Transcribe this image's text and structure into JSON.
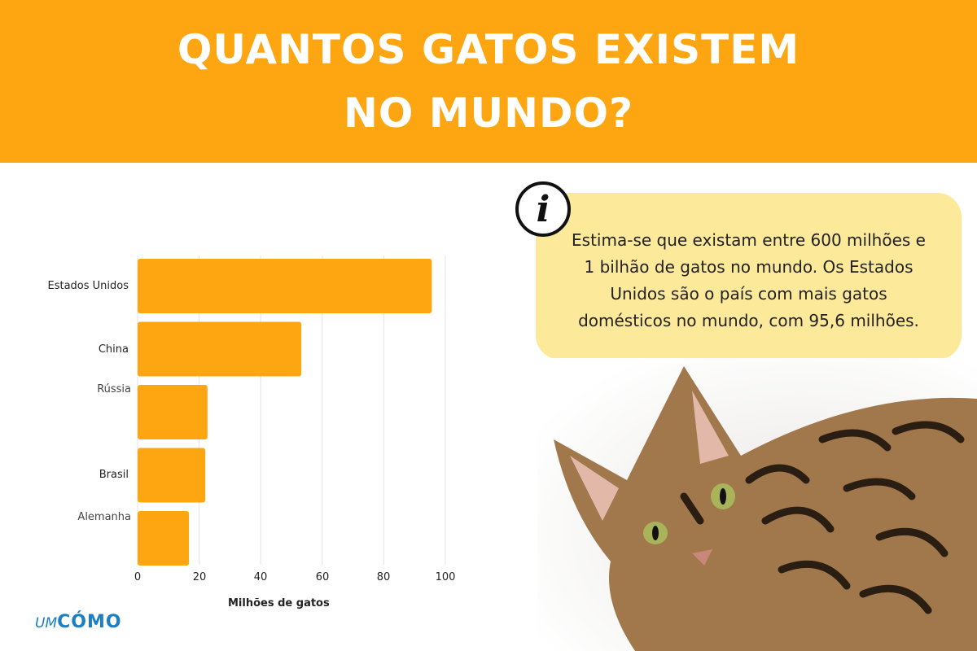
{
  "header": {
    "title_line1": "QUANTOS GATOS EXISTEM",
    "title_line2": "NO MUNDO?"
  },
  "info": {
    "icon": "info-icon",
    "glyph": "i",
    "text": "Estima-se que existam entre 600 milhões e 1 bilhão de gatos no mundo. Os Estados Unidos são o país com mais gatos domésticos no mundo, com 95,6 milhões."
  },
  "chart_data": {
    "type": "bar",
    "orientation": "horizontal",
    "categories": [
      "Estados Unidos",
      "China",
      "Rússia",
      "Brasil",
      "Alemanha"
    ],
    "values": [
      95.6,
      53.2,
      22.7,
      22,
      16.7
    ],
    "xlabel": "Milhões de gatos",
    "ylabel": "",
    "xlim": [
      0,
      100
    ],
    "xticks": [
      "0",
      "20",
      "40",
      "60",
      "80",
      "100"
    ],
    "grid": true,
    "bar_color": "#fea512"
  },
  "logo": {
    "um": "UM",
    "como": "CÓMO"
  },
  "colors": {
    "header": "#fea512",
    "bubble": "#fde99a",
    "logo": "#1b7fc4"
  }
}
